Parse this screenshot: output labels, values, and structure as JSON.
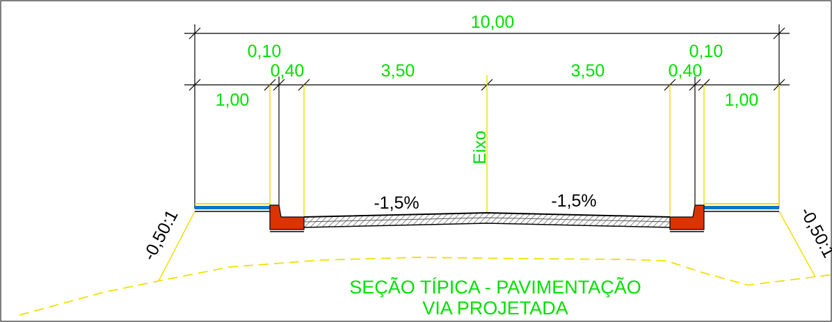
{
  "drawing": {
    "dimensions": {
      "total": "10,00",
      "curb_left": "0,10",
      "curb_right": "0,10",
      "gutter_left": "0,40",
      "gutter_right": "0,40",
      "lane_left": "3,50",
      "lane_right": "3,50",
      "sidewalk_left": "1,00",
      "sidewalk_right": "1,00"
    },
    "axis_label": "Eixo",
    "cross_slope_left": "-1,5%",
    "cross_slope_right": "-1,5%",
    "side_slope_left": "-0,50:1",
    "side_slope_right": "-0,50:1",
    "title_line1": "SEÇÃO TÍPICA - PAVIMENTAÇÃO",
    "title_line2": "VIA PROJETADA"
  },
  "colors": {
    "dimension_text": "#00e000",
    "guide_lines": "#ffff00",
    "curb": "#dd3300",
    "sidewalk_fill": "#0077cc",
    "background": "#ffffff"
  }
}
